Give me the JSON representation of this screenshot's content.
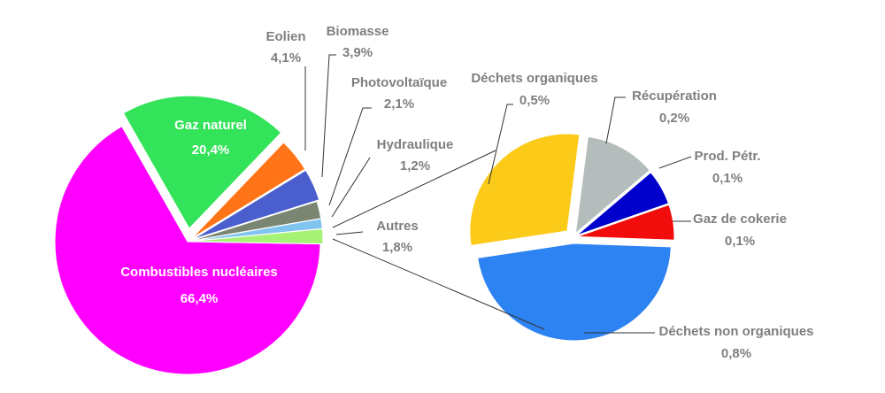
{
  "chart_data": [
    {
      "type": "pie",
      "slices": [
        {
          "name": "Combustibles nucléaires",
          "value_label": "66,4%",
          "value": 66.4,
          "color": "#ff00ff"
        },
        {
          "name": "Gaz naturel",
          "value_label": "20,4%",
          "value": 20.4,
          "color": "#33e35a"
        },
        {
          "name": "Eolien",
          "value_label": "4,1%",
          "value": 4.1,
          "color": "#ff7417"
        },
        {
          "name": "Biomasse",
          "value_label": "3,9%",
          "value": 3.9,
          "color": "#4a5fcd"
        },
        {
          "name": "Photovoltaïque",
          "value_label": "2,1%",
          "value": 2.1,
          "color": "#7a8672"
        },
        {
          "name": "Hydraulique",
          "value_label": "1,2%",
          "value": 1.2,
          "color": "#7fc5ef"
        },
        {
          "name": "Autres",
          "value_label": "1,8%",
          "value": 1.8,
          "color": "#a6f275"
        }
      ]
    },
    {
      "type": "pie",
      "breakdown_of": "Autres",
      "slices": [
        {
          "name": "Déchets non organiques",
          "value_label": "0,8%",
          "value": 0.8,
          "color": "#2e83f2"
        },
        {
          "name": "Déchets organiques",
          "value_label": "0,5%",
          "value": 0.5,
          "color": "#fccb19"
        },
        {
          "name": "Récupération",
          "value_label": "0,2%",
          "value": 0.2,
          "color": "#b4bcbc"
        },
        {
          "name": "Prod. Pétr.",
          "value_label": "0,1%",
          "value": 0.1,
          "color": "#0000cc"
        },
        {
          "name": "Gaz de cokerie",
          "value_label": "0,1%",
          "value": 0.1,
          "color": "#f20d0d"
        }
      ]
    }
  ]
}
